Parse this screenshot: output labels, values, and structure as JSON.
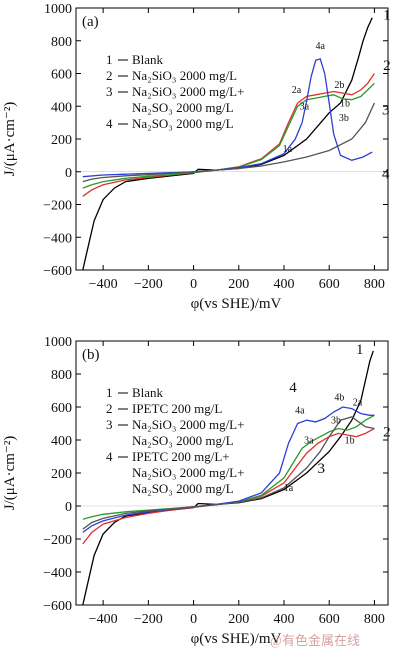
{
  "watermark": "@有色金属在线",
  "chart_data": [
    {
      "type": "line",
      "panel_label": "(a)",
      "xlabel": "φ(vs SHE)/mV",
      "ylabel": "J/(μA·cm⁻²)",
      "xlim": [
        -520,
        860
      ],
      "ylim": [
        -600,
        1000
      ],
      "xticks": [
        -400,
        -200,
        0,
        200,
        400,
        600,
        800
      ],
      "yticks": [
        -600,
        -400,
        -200,
        0,
        200,
        400,
        600,
        800,
        1000
      ],
      "xtick_labels": [
        "−400",
        "−200",
        "0",
        "200",
        "400",
        "600",
        "800"
      ],
      "ytick_labels": [
        "−600",
        "−400",
        "−200",
        "0",
        "200",
        "400",
        "600",
        "800",
        "1000"
      ],
      "legend": [
        {
          "num": "1",
          "text": "Blank"
        },
        {
          "num": "2",
          "text": "Na₂SiO₃ 2000 mg/L"
        },
        {
          "num": "3",
          "text": "Na₂SiO₃ 2000 mg/L+"
        },
        {
          "num": "",
          "text": "Na₂SO₃ 2000 mg/L"
        },
        {
          "num": "4",
          "text": "Na₂SO₃ 2000 mg/L"
        }
      ],
      "series": [
        {
          "label": "1",
          "color": "#000000",
          "x": [
            -490,
            -470,
            -440,
            -400,
            -350,
            -300,
            -200,
            -100,
            0,
            20,
            100,
            200,
            300,
            400,
            500,
            550,
            600,
            650,
            700,
            730,
            750,
            770,
            790
          ],
          "y": [
            -600,
            -480,
            -300,
            -170,
            -100,
            -60,
            -40,
            -25,
            -10,
            15,
            10,
            20,
            45,
            100,
            200,
            280,
            360,
            420,
            560,
            700,
            800,
            880,
            940
          ]
        },
        {
          "label": "2",
          "color": "#e03030",
          "x": [
            -490,
            -450,
            -400,
            -300,
            -200,
            -100,
            0,
            100,
            200,
            300,
            380,
            420,
            460,
            500,
            540,
            580,
            620,
            660,
            700,
            740,
            770,
            800
          ],
          "y": [
            -150,
            -110,
            -80,
            -50,
            -35,
            -20,
            -5,
            10,
            30,
            80,
            170,
            300,
            420,
            460,
            470,
            480,
            490,
            480,
            470,
            500,
            540,
            600
          ]
        },
        {
          "label": "3",
          "color": "#2a9a2a",
          "x": [
            -490,
            -450,
            -400,
            -300,
            -200,
            -100,
            0,
            100,
            200,
            300,
            380,
            420,
            460,
            500,
            540,
            580,
            620,
            660,
            700,
            740,
            770,
            800
          ],
          "y": [
            -100,
            -80,
            -60,
            -40,
            -28,
            -18,
            -5,
            10,
            28,
            75,
            160,
            280,
            400,
            440,
            450,
            460,
            470,
            445,
            440,
            460,
            500,
            540
          ]
        },
        {
          "label": "4",
          "color": "#2c3fd8",
          "x": [
            -490,
            -400,
            -300,
            -200,
            -100,
            0,
            100,
            200,
            300,
            400,
            450,
            480,
            500,
            520,
            540,
            560,
            580,
            600,
            620,
            650,
            700,
            750,
            790
          ],
          "y": [
            -30,
            -20,
            -15,
            -10,
            -5,
            0,
            10,
            25,
            50,
            110,
            200,
            300,
            430,
            580,
            680,
            690,
            600,
            420,
            230,
            100,
            70,
            90,
            120
          ]
        },
        {
          "label": "",
          "color": "#555555",
          "x": [
            -490,
            -450,
            -400,
            -300,
            -200,
            -100,
            0,
            100,
            200,
            300,
            400,
            500,
            600,
            700,
            760,
            800
          ],
          "y": [
            -60,
            -45,
            -35,
            -25,
            -18,
            -10,
            0,
            10,
            20,
            35,
            60,
            90,
            130,
            200,
            300,
            420
          ]
        }
      ],
      "annotations": [
        {
          "text": "4a",
          "x": 560,
          "y": 750
        },
        {
          "text": "2a",
          "x": 455,
          "y": 480
        },
        {
          "text": "2b",
          "x": 645,
          "y": 510
        },
        {
          "text": "3a",
          "x": 490,
          "y": 380
        },
        {
          "text": "1b",
          "x": 670,
          "y": 400
        },
        {
          "text": "3b",
          "x": 665,
          "y": 310
        },
        {
          "text": "1a",
          "x": 415,
          "y": 120
        }
      ],
      "curve_numbers": [
        {
          "text": "1",
          "x": 855,
          "y": 930
        },
        {
          "text": "2",
          "x": 855,
          "y": 620
        },
        {
          "text": "3",
          "x": 850,
          "y": 350
        },
        {
          "text": "4",
          "x": 850,
          "y": -40
        }
      ]
    },
    {
      "type": "line",
      "panel_label": "(b)",
      "xlabel": "φ(vs SHE)/mV",
      "ylabel": "J/(μA·cm⁻²)",
      "xlim": [
        -520,
        860
      ],
      "ylim": [
        -600,
        1000
      ],
      "xticks": [
        -400,
        -200,
        0,
        200,
        400,
        600,
        800
      ],
      "yticks": [
        -600,
        -400,
        -200,
        0,
        200,
        400,
        600,
        800,
        1000
      ],
      "xtick_labels": [
        "−400",
        "−200",
        "0",
        "200",
        "400",
        "600",
        "800"
      ],
      "ytick_labels": [
        "−600",
        "−400",
        "−200",
        "0",
        "200",
        "400",
        "600",
        "800",
        "1000"
      ],
      "legend": [
        {
          "num": "1",
          "text": "Blank"
        },
        {
          "num": "2",
          "text": "IPETC 200 mg/L"
        },
        {
          "num": "3",
          "text": "Na₂SiO₃ 2000 mg/L+"
        },
        {
          "num": "",
          "text": "Na₂SO₃ 2000 mg/L"
        },
        {
          "num": "4",
          "text": "IPETC 200 mg/L+"
        },
        {
          "num": "",
          "text": "Na₂SiO₃ 2000 mg/L+"
        },
        {
          "num": "",
          "text": "Na₂SO₃ 2000 mg/L"
        }
      ],
      "series": [
        {
          "label": "1",
          "color": "#000000",
          "x": [
            -490,
            -470,
            -440,
            -400,
            -350,
            -300,
            -200,
            -100,
            0,
            20,
            100,
            200,
            300,
            400,
            500,
            600,
            650,
            700,
            740,
            760,
            780,
            795
          ],
          "y": [
            -600,
            -480,
            -300,
            -170,
            -100,
            -60,
            -40,
            -25,
            -10,
            15,
            10,
            20,
            45,
            100,
            200,
            330,
            420,
            520,
            640,
            760,
            880,
            940
          ]
        },
        {
          "label": "2",
          "color": "#e03030",
          "x": [
            -490,
            -450,
            -400,
            -300,
            -200,
            -100,
            0,
            100,
            200,
            300,
            400,
            450,
            500,
            550,
            600,
            640,
            680,
            720,
            760,
            800
          ],
          "y": [
            -230,
            -160,
            -110,
            -70,
            -45,
            -25,
            -8,
            8,
            25,
            60,
            140,
            230,
            320,
            380,
            420,
            440,
            430,
            420,
            440,
            470
          ]
        },
        {
          "label": "3",
          "color": "#2a9a2a",
          "x": [
            -490,
            -450,
            -400,
            -300,
            -200,
            -100,
            0,
            100,
            200,
            300,
            400,
            440,
            480,
            520,
            560,
            600,
            640,
            680,
            720,
            760,
            800
          ],
          "y": [
            -80,
            -65,
            -50,
            -35,
            -25,
            -15,
            -5,
            10,
            25,
            65,
            170,
            260,
            350,
            390,
            420,
            450,
            470,
            460,
            480,
            520,
            550
          ]
        },
        {
          "label": "4",
          "color": "#2c3fd8",
          "x": [
            -490,
            -450,
            -400,
            -300,
            -200,
            -100,
            0,
            100,
            200,
            300,
            380,
            420,
            460,
            500,
            540,
            580,
            620,
            660,
            700,
            740,
            780,
            800
          ],
          "y": [
            -160,
            -120,
            -90,
            -55,
            -35,
            -20,
            -5,
            10,
            30,
            80,
            200,
            380,
            500,
            520,
            510,
            530,
            570,
            600,
            590,
            560,
            550,
            550
          ]
        },
        {
          "label": "",
          "color": "#555555",
          "x": [
            -490,
            -450,
            -400,
            -300,
            -200,
            -100,
            0,
            100,
            200,
            300,
            400,
            500,
            560,
            600,
            650,
            700,
            760,
            800
          ],
          "y": [
            -140,
            -100,
            -75,
            -45,
            -30,
            -18,
            -5,
            8,
            22,
            50,
            110,
            230,
            330,
            420,
            520,
            540,
            480,
            470
          ]
        }
      ],
      "annotations": [
        {
          "text": "4b",
          "x": 645,
          "y": 640
        },
        {
          "text": "2a",
          "x": 725,
          "y": 610
        },
        {
          "text": "4a",
          "x": 470,
          "y": 560
        },
        {
          "text": "3b",
          "x": 630,
          "y": 500
        },
        {
          "text": "3a",
          "x": 510,
          "y": 380
        },
        {
          "text": "1b",
          "x": 690,
          "y": 380
        },
        {
          "text": "1a",
          "x": 420,
          "y": 90
        }
      ],
      "curve_numbers": [
        {
          "text": "1",
          "x": 735,
          "y": 920
        },
        {
          "text": "2",
          "x": 855,
          "y": 420
        },
        {
          "text": "3",
          "x": 565,
          "y": 200
        },
        {
          "text": "4",
          "x": 440,
          "y": 690
        }
      ]
    }
  ]
}
